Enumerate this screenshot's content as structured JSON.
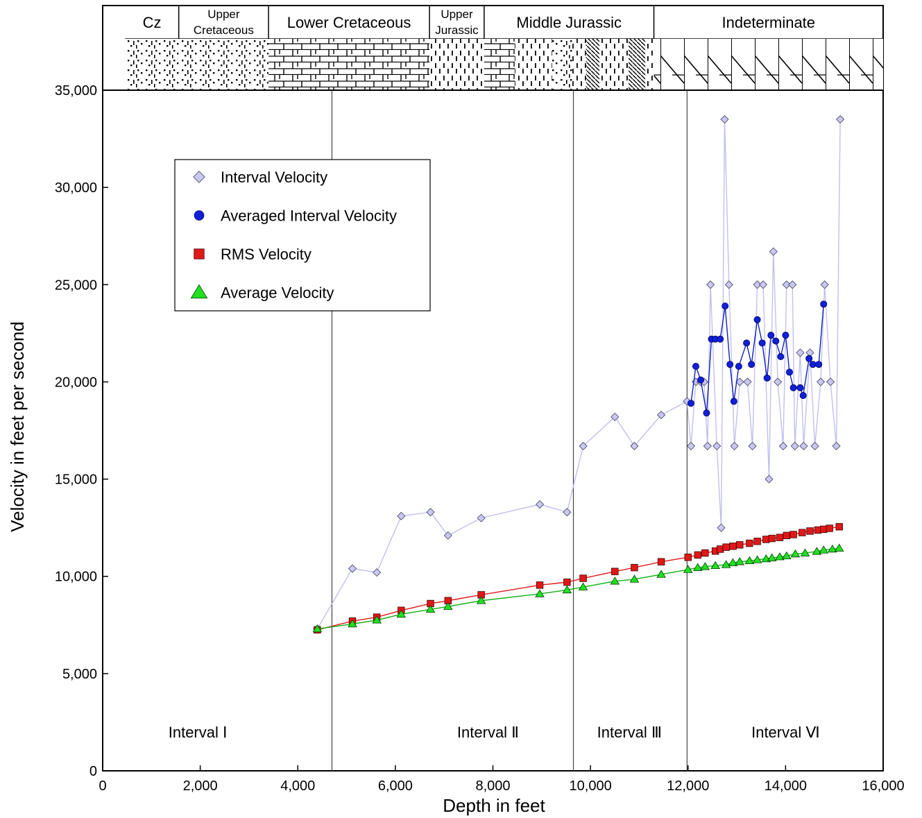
{
  "chart_data": {
    "type": "scatter",
    "xlabel": "Depth in feet",
    "ylabel": "Velocity in feet per second",
    "xlim": [
      0,
      16000
    ],
    "ylim": [
      0,
      35000
    ],
    "x_ticks": [
      0,
      2000,
      4000,
      6000,
      8000,
      10000,
      12000,
      14000,
      16000
    ],
    "x_tick_labels": [
      "0",
      "2,000",
      "4,000",
      "6,000",
      "8,000",
      "10,000",
      "12,000",
      "14,000",
      "16,000"
    ],
    "y_ticks": [
      0,
      5000,
      10000,
      15000,
      20000,
      25000,
      30000,
      35000
    ],
    "y_tick_labels": [
      "0",
      "5,000",
      "10,000",
      "15,000",
      "20,000",
      "25,000",
      "30,000",
      "35,000"
    ],
    "grid": false,
    "legend_position": "upper-left",
    "series": [
      {
        "name": "Interval Velocity",
        "marker": "diamond",
        "color": "#c8c8f0",
        "line_color": "#c0c0ee",
        "x": [
          4400,
          5120,
          5620,
          6120,
          6720,
          7080,
          7760,
          8960,
          9520,
          9850,
          10500,
          10900,
          11450,
          11980,
          12060,
          12160,
          12260,
          12330,
          12400,
          12460,
          12590,
          12680,
          12750,
          12840,
          12950,
          13060,
          13220,
          13320,
          13420,
          13540,
          13660,
          13750,
          13840,
          13950,
          14020,
          14140,
          14190,
          14300,
          14370,
          14500,
          14600,
          14720,
          14800,
          14920,
          15040,
          15120
        ],
        "y": [
          7300,
          10400,
          10200,
          13100,
          13300,
          12100,
          13000,
          13700,
          13300,
          16700,
          18200,
          16700,
          18300,
          19000,
          16700,
          20000,
          20000,
          20000,
          16700,
          25000,
          16700,
          12500,
          33500,
          25000,
          16700,
          20000,
          20000,
          16700,
          25000,
          25000,
          15000,
          26700,
          20000,
          16700,
          25000,
          25000,
          16700,
          21500,
          16700,
          21500,
          16700,
          20000,
          25000,
          20000,
          16700,
          33500
        ]
      },
      {
        "name": "Averaged Interval Velocity",
        "marker": "circle",
        "color": "#1020d8",
        "line_color": "#1020c0",
        "x": [
          12060,
          12160,
          12260,
          12380,
          12480,
          12560,
          12660,
          12760,
          12860,
          12940,
          13040,
          13200,
          13300,
          13420,
          13520,
          13620,
          13700,
          13800,
          13900,
          14000,
          14080,
          14160,
          14300,
          14360,
          14480,
          14560,
          14680,
          14780
        ],
        "y": [
          18900,
          20800,
          20100,
          18400,
          22200,
          22200,
          22200,
          23900,
          20900,
          19000,
          20800,
          22000,
          20900,
          23200,
          22000,
          20200,
          22400,
          22100,
          21300,
          22400,
          20500,
          19700,
          19700,
          19300,
          21200,
          20900,
          20900,
          24000
        ]
      },
      {
        "name": "RMS Velocity",
        "marker": "square",
        "color": "#e01818",
        "line_color": "#e01818",
        "x": [
          4400,
          5120,
          5620,
          6120,
          6720,
          7080,
          7760,
          8960,
          9520,
          9850,
          10500,
          10900,
          11450,
          12000,
          12200,
          12350,
          12560,
          12660,
          12780,
          12920,
          13060,
          13260,
          13420,
          13600,
          13720,
          13880,
          14020,
          14160,
          14340,
          14500,
          14660,
          14780,
          14900,
          15100
        ],
        "y": [
          7250,
          7700,
          7900,
          8250,
          8600,
          8750,
          9050,
          9550,
          9700,
          9900,
          10250,
          10450,
          10750,
          10980,
          11100,
          11200,
          11300,
          11400,
          11500,
          11550,
          11620,
          11700,
          11800,
          11900,
          11950,
          12000,
          12100,
          12150,
          12250,
          12330,
          12380,
          12420,
          12470,
          12550
        ]
      },
      {
        "name": "Average Velocity",
        "marker": "triangle",
        "color": "#20e020",
        "line_color": "#10b010",
        "x": [
          4400,
          5120,
          5620,
          6120,
          6720,
          7080,
          7760,
          8960,
          9520,
          9850,
          10500,
          10900,
          11450,
          12000,
          12200,
          12350,
          12560,
          12780,
          12920,
          13060,
          13260,
          13420,
          13600,
          13720,
          13880,
          14020,
          14200,
          14400,
          14640,
          14780,
          14960,
          15100
        ],
        "y": [
          7300,
          7550,
          7750,
          8050,
          8300,
          8450,
          8750,
          9100,
          9300,
          9450,
          9750,
          9850,
          10100,
          10350,
          10450,
          10500,
          10550,
          10600,
          10700,
          10750,
          10800,
          10850,
          10900,
          10950,
          11000,
          11050,
          11150,
          11200,
          11280,
          11350,
          11400,
          11450
        ]
      }
    ],
    "interval_boundaries": [
      4700,
      9650,
      11980
    ],
    "interval_labels": [
      {
        "text": "Interval Ⅰ",
        "x": 1950
      },
      {
        "text": "Interval Ⅱ",
        "x": 7900
      },
      {
        "text": "Interval Ⅲ",
        "x": 10800
      },
      {
        "text": "Interval Ⅵ",
        "x": 14000
      }
    ],
    "stratigraphy": [
      {
        "label": "Cz",
        "lines": [
          "Cz"
        ],
        "x_start": 460,
        "x_end": 1560,
        "pattern": "dots-dashes"
      },
      {
        "label": "Upper Cretaceous",
        "lines": [
          "Upper",
          "Cretaceous"
        ],
        "x_start": 1560,
        "x_end": 3400,
        "pattern": "dots-dashes"
      },
      {
        "label": "Lower Cretaceous",
        "lines": [
          "Lower Cretaceous"
        ],
        "x_start": 3400,
        "x_end": 6700,
        "pattern": "limestone"
      },
      {
        "label": "Upper Jurassic",
        "lines": [
          "Upper",
          "Jurassic"
        ],
        "x_start": 6700,
        "x_end": 7820,
        "pattern": "dashes"
      },
      {
        "label": "Middle Jurassic",
        "lines": [
          "Middle Jurassic"
        ],
        "x_start": 7820,
        "x_end": 11300,
        "pattern": "mixed"
      },
      {
        "label": "Indeterminate",
        "lines": [
          "Indeterminate"
        ],
        "x_start": 11300,
        "x_end": 16000,
        "pattern": "dolomite"
      }
    ]
  },
  "colors": {
    "axis": "#000000",
    "interval_line": "#444444"
  }
}
